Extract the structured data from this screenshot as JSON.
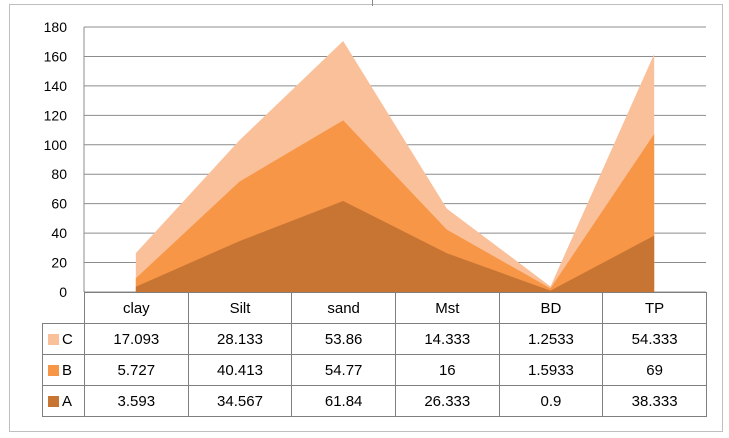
{
  "chart_data": {
    "type": "area",
    "stacked": true,
    "categories": [
      "clay",
      "Silt",
      "sand",
      "Mst",
      "BD",
      "TP"
    ],
    "series": [
      {
        "name": "A",
        "values": [
          3.593,
          34.567,
          61.84,
          26.333,
          0.9,
          38.333
        ],
        "color": "#c87533",
        "labels": [
          "3.593",
          "34.567",
          "61.84",
          "26.333",
          "0.9",
          "38.333"
        ]
      },
      {
        "name": "B",
        "values": [
          5.727,
          40.413,
          54.77,
          16,
          1.5933,
          69
        ],
        "color": "#f79646",
        "labels": [
          "5.727",
          "40.413",
          "54.77",
          "16",
          "1.5933",
          "69"
        ]
      },
      {
        "name": "C",
        "values": [
          17.093,
          28.133,
          53.86,
          14.333,
          1.2533,
          54.333
        ],
        "color": "#fac09a",
        "labels": [
          "17.093",
          "28.133",
          "53.86",
          "14.333",
          "1.2533",
          "54.333"
        ]
      }
    ],
    "table_row_order": [
      "C",
      "B",
      "A"
    ],
    "ylim": [
      0,
      180
    ],
    "yticks": [
      0,
      20,
      40,
      60,
      80,
      100,
      120,
      140,
      160,
      180
    ],
    "grid": true,
    "legend": "data-table"
  }
}
